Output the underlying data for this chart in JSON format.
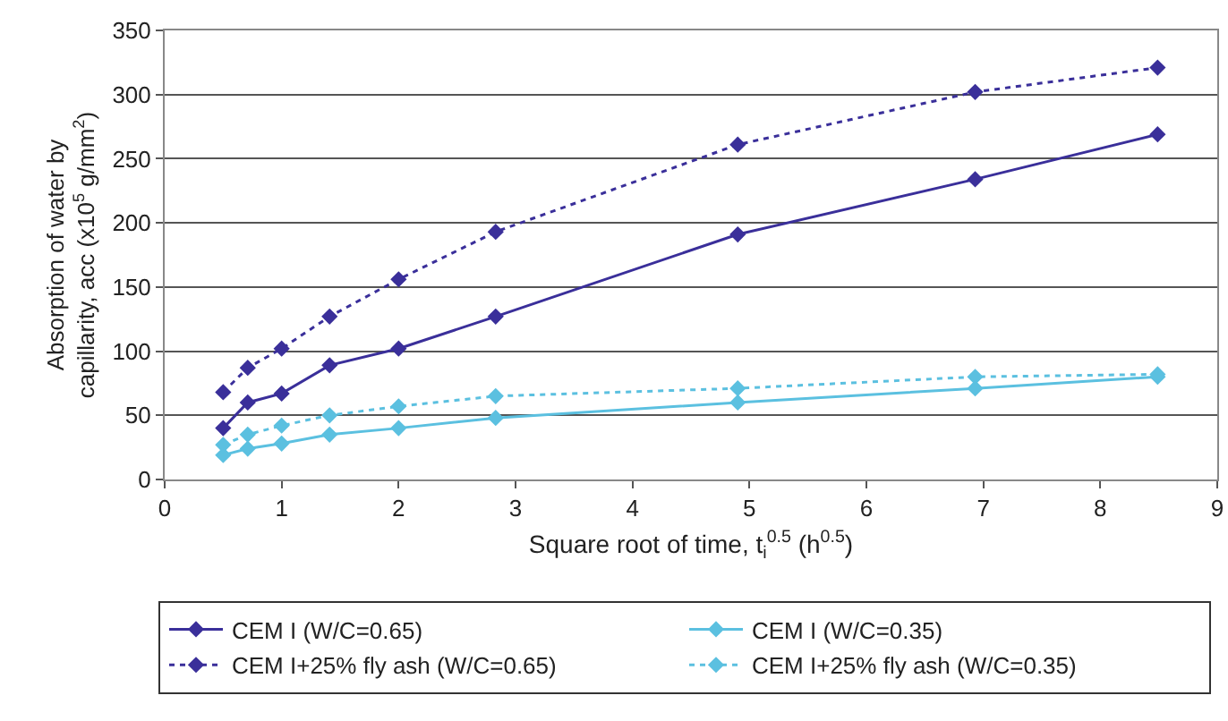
{
  "chart_data": {
    "type": "line",
    "xlabel": "Square root of time, t$_{i}$$^{0.5}$ (h$^{0.5}$)",
    "ylabel": "Absorption of water by\ncapillarity, acc (x10$^{5}$ g/mm$^{2}$)",
    "x": [
      0.5,
      0.71,
      1,
      1.41,
      2,
      2.83,
      4.9,
      6.93,
      8.49
    ],
    "series": [
      {
        "name": "CEM I (W/C=0.65)",
        "color": "#3a2f9a",
        "line_style": "solid",
        "values": [
          40,
          60,
          67,
          89,
          102,
          127,
          191,
          234,
          269
        ]
      },
      {
        "name": "CEM I (W/C=0.35)",
        "color": "#5bc0e0",
        "line_style": "solid",
        "values": [
          19,
          24,
          28,
          35,
          40,
          48,
          60,
          71,
          80
        ]
      },
      {
        "name": "CEM I+25% fly ash (W/C=0.65)",
        "color": "#3a2f9a",
        "line_style": "dotted",
        "values": [
          68,
          87,
          102,
          127,
          156,
          193,
          261,
          302,
          321
        ]
      },
      {
        "name": "CEM I+25% fly ash (W/C=0.35)",
        "color": "#5bc0e0",
        "line_style": "dotted",
        "values": [
          27,
          35,
          42,
          50,
          57,
          65,
          71,
          80,
          82
        ]
      }
    ],
    "xlim": [
      0,
      9
    ],
    "xticks": [
      0,
      1,
      2,
      3,
      4,
      5,
      6,
      7,
      8,
      9
    ],
    "ylim": [
      0,
      350
    ],
    "yticks": [
      0,
      50,
      100,
      150,
      200,
      250,
      300,
      350
    ],
    "grid": "y",
    "legend": "bottom",
    "marker": "diamond"
  }
}
